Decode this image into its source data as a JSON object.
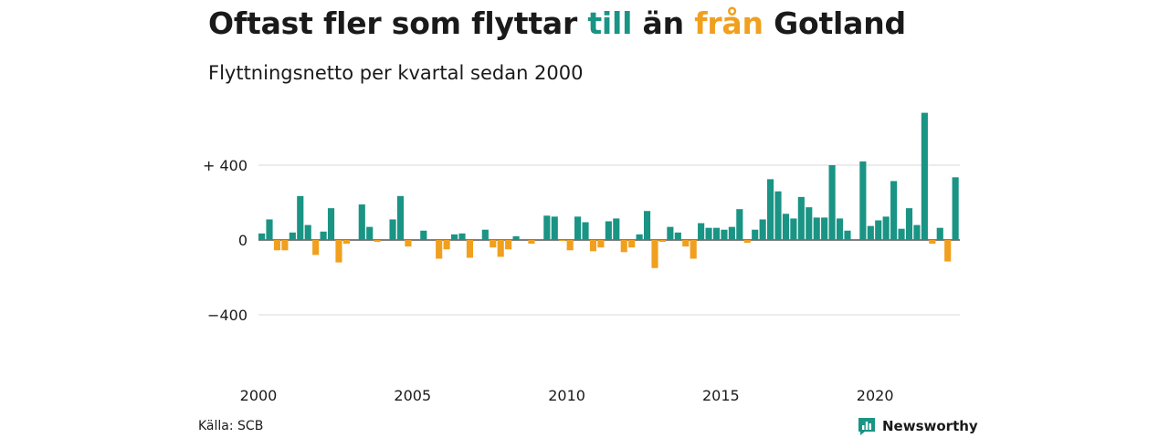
{
  "title_parts": {
    "p1": "Oftast fler som flyttar ",
    "p2": "till",
    "p3": " än ",
    "p4": "från",
    "p5": " Gotland"
  },
  "subtitle": "Flyttningsnetto per kvartal sedan 2000",
  "source": "Källa: SCB",
  "brand": "Newsworthy",
  "colors": {
    "positive": "#1a9484",
    "negative": "#f0a01e",
    "grid": "#d9d9d9",
    "axis": "#333333",
    "text": "#1a1a1a"
  },
  "chart_data": {
    "type": "bar",
    "title": "Oftast fler som flyttar till än från Gotland",
    "subtitle": "Flyttningsnetto per kvartal sedan 2000",
    "x_start": "2000 Q1",
    "xlabel": "",
    "ylabel": "",
    "ylim": [
      -580,
      680
    ],
    "grid": true,
    "y_ticks": [
      {
        "value": 400,
        "label": "+ 400"
      },
      {
        "value": 0,
        "label": "0"
      },
      {
        "value": -400,
        "label": "−400"
      }
    ],
    "x_ticks": [
      {
        "label": "2000",
        "index": 0
      },
      {
        "label": "2005",
        "index": 20
      },
      {
        "label": "2010",
        "index": 40
      },
      {
        "label": "2015",
        "index": 60
      },
      {
        "label": "2020",
        "index": 80
      }
    ],
    "values": [
      35,
      110,
      -55,
      -55,
      40,
      235,
      80,
      -80,
      45,
      170,
      -120,
      -20,
      0,
      190,
      70,
      -10,
      0,
      110,
      235,
      -35,
      0,
      50,
      0,
      -100,
      -50,
      30,
      35,
      -95,
      0,
      55,
      -40,
      -90,
      -50,
      20,
      0,
      -20,
      0,
      130,
      125,
      -5,
      -55,
      125,
      95,
      -60,
      -40,
      100,
      115,
      -65,
      -40,
      30,
      155,
      -150,
      -10,
      70,
      40,
      -35,
      -100,
      90,
      65,
      65,
      55,
      70,
      165,
      -15,
      55,
      110,
      325,
      260,
      140,
      115,
      230,
      175,
      120,
      120,
      400,
      115,
      50,
      0,
      420,
      75,
      105,
      125,
      315,
      60,
      170,
      80,
      680,
      -20,
      65,
      -115,
      335
    ]
  }
}
